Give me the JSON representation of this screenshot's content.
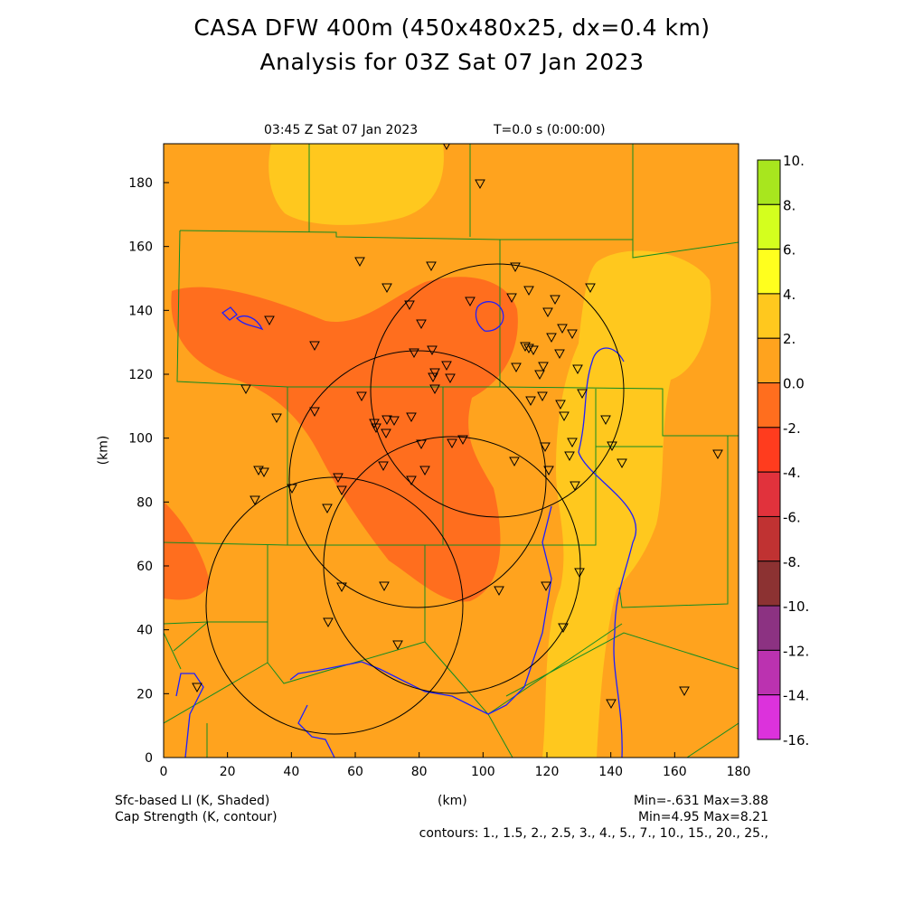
{
  "title": {
    "line1": "CASA DFW 400m (450x480x25, dx=0.4 km)",
    "line2": "Analysis for 03Z Sat 07 Jan 2023"
  },
  "plot": {
    "valid_time": "03:45 Z Sat 07 Jan 2023",
    "forecast_time": "T=0.0 s (0:00:00)",
    "y_label": "(km)",
    "x_label": "(km)",
    "x_ticks": [
      "0",
      "20",
      "40",
      "60",
      "80",
      "100",
      "120",
      "140",
      "160",
      "180"
    ],
    "y_ticks": [
      "0",
      "20",
      "40",
      "60",
      "80",
      "100",
      "120",
      "140",
      "160",
      "180"
    ]
  },
  "colorbar": {
    "labels": [
      "10.",
      "8.",
      "6.",
      "4.",
      "2.",
      "0.0",
      "-2.",
      "-4.",
      "-6.",
      "-8.",
      "-10.",
      "-12.",
      "-14.",
      "-16."
    ],
    "colors": [
      "#a8e61e",
      "#d4ff1e",
      "#ffff1e",
      "#ffc81e",
      "#ffa31e",
      "#ff6e1e",
      "#ff3c1e",
      "#e1323c",
      "#c03232",
      "#8c3232",
      "#8c3282",
      "#bb32b0",
      "#dc32dc"
    ]
  },
  "footer": {
    "shaded_label": "Sfc-based LI (K, Shaded)",
    "contour_label": "Cap Strength (K, contour)",
    "shaded_minmax": "Min=-.631 Max=3.88",
    "contour_minmax": "Min=4.95 Max=8.21",
    "contours": "contours: 1., 1.5, 2., 2.5, 3., 4., 5., 7., 10., 15., 20., 25.,"
  }
}
